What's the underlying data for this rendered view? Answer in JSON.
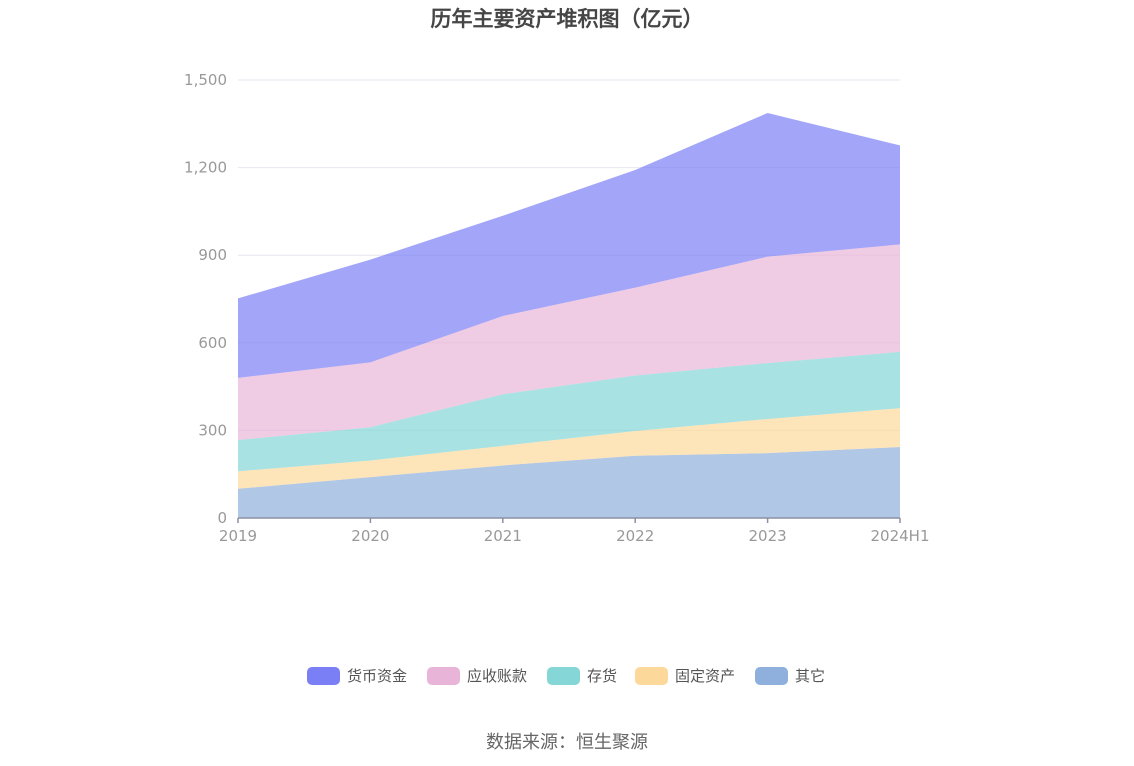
{
  "chart_data": {
    "type": "area",
    "stacked": true,
    "title": "历年主要资产堆积图（亿元）",
    "categories": [
      "2019",
      "2020",
      "2021",
      "2022",
      "2023",
      "2024H1"
    ],
    "ylim": [
      0,
      1500
    ],
    "yticks": [
      0,
      300,
      600,
      900,
      1200,
      1500
    ],
    "ytick_labels": [
      "0",
      "300",
      "600",
      "900",
      "1,200",
      "1,500"
    ],
    "grid": true,
    "legend_position": "bottom",
    "series": [
      {
        "name": "其它",
        "color": "#8fb0dc",
        "values": [
          100,
          140,
          180,
          213,
          222,
          243
        ]
      },
      {
        "name": "固定资产",
        "color": "#fdd89b",
        "values": [
          60,
          57,
          67,
          85,
          117,
          133
        ]
      },
      {
        "name": "存货",
        "color": "#85d6d6",
        "values": [
          107,
          114,
          177,
          190,
          192,
          193
        ]
      },
      {
        "name": "应收账款",
        "color": "#e8b5d8",
        "values": [
          213,
          222,
          268,
          301,
          364,
          368
        ]
      },
      {
        "name": "货币资金",
        "color": "#7b7ff5",
        "values": [
          272,
          352,
          343,
          403,
          492,
          339
        ]
      }
    ],
    "legend_order": [
      "货币资金",
      "应收账款",
      "存货",
      "固定资产",
      "其它"
    ]
  },
  "source": "数据来源：恒生聚源"
}
